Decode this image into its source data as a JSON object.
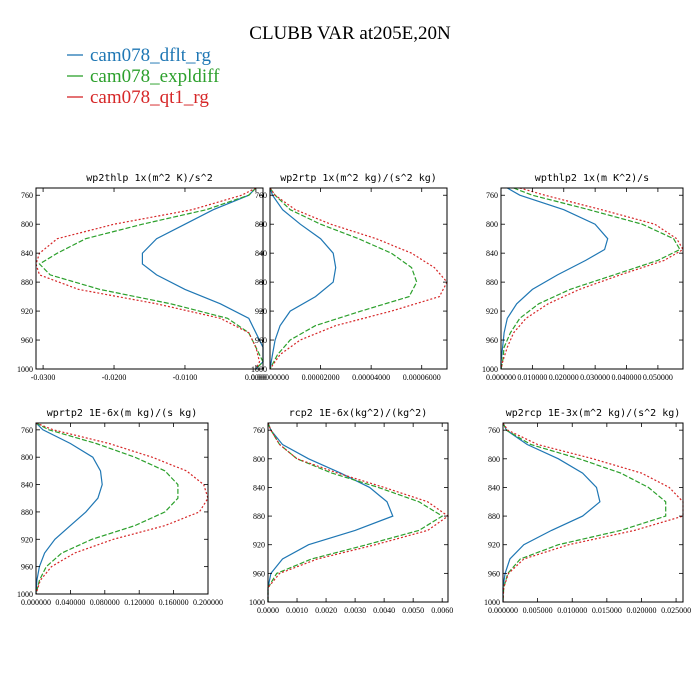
{
  "title": "CLUBB VAR at205E,20N",
  "legend": [
    {
      "name": "cam078_dflt_rg",
      "color": "#1f77b4"
    },
    {
      "name": "cam078_expldiff",
      "color": "#2ca02c"
    },
    {
      "name": "cam078_qt1_rg",
      "color": "#d62728"
    }
  ],
  "chart_data": [
    {
      "type": "line",
      "title": "wp2thlp  1x(m^2 K)/s^2",
      "ylim": [
        1000,
        750
      ],
      "xlim": [
        -0.031,
        0.001
      ],
      "yticks": [
        760,
        800,
        840,
        880,
        920,
        960,
        1000
      ],
      "xticks": [
        -0.03,
        -0.02,
        -0.01,
        0.0
      ],
      "xticklabels": [
        "-0.0300",
        "-0.0200",
        "-0.0100",
        "0.0000"
      ],
      "y": [
        750,
        760,
        780,
        800,
        820,
        840,
        855,
        870,
        890,
        910,
        930,
        950,
        970,
        990,
        1000
      ],
      "series": [
        {
          "name": "cam078_dflt_rg",
          "values": [
            0.0,
            -0.001,
            -0.006,
            -0.01,
            -0.014,
            -0.016,
            -0.016,
            -0.014,
            -0.01,
            -0.005,
            -0.001,
            0.0,
            0.001,
            0.001,
            0.0
          ]
        },
        {
          "name": "cam078_expldiff",
          "values": [
            0.0,
            -0.001,
            -0.007,
            -0.016,
            -0.024,
            -0.028,
            -0.0305,
            -0.029,
            -0.022,
            -0.012,
            -0.004,
            -0.001,
            0.0,
            0.001,
            0.0
          ]
        },
        {
          "name": "cam078_qt1_rg",
          "values": [
            0.0,
            -0.002,
            -0.009,
            -0.02,
            -0.028,
            -0.0305,
            -0.031,
            -0.0305,
            -0.025,
            -0.014,
            -0.005,
            -0.001,
            0.0,
            0.0005,
            0.0
          ]
        }
      ]
    },
    {
      "type": "line",
      "title": "wp2rtp  1x(m^2 kg)/(s^2 kg)",
      "ylim": [
        1000,
        750
      ],
      "xlim": [
        0,
        7e-05
      ],
      "yticks": [
        760,
        800,
        840,
        880,
        920,
        960,
        1000
      ],
      "xticks": [
        0,
        2e-05,
        4e-05,
        6e-05
      ],
      "xticklabels": [
        "0.00000000",
        "0.00002000",
        "0.00004000",
        "0.00006000"
      ],
      "y": [
        750,
        760,
        780,
        800,
        820,
        840,
        860,
        880,
        900,
        920,
        940,
        960,
        980,
        1000
      ],
      "series": [
        {
          "name": "cam078_dflt_rg",
          "values": [
            0.0,
            1e-06,
            5e-06,
            1.2e-05,
            2e-05,
            2.5e-05,
            2.6e-05,
            2.5e-05,
            1.8e-05,
            8e-06,
            4e-06,
            2e-06,
            1e-06,
            0.0
          ]
        },
        {
          "name": "cam078_expldiff",
          "values": [
            0.0,
            2e-06,
            8e-06,
            2e-05,
            3.5e-05,
            4.8e-05,
            5.6e-05,
            5.8e-05,
            5.5e-05,
            3.6e-05,
            1.8e-05,
            8e-06,
            3e-06,
            0.0
          ]
        },
        {
          "name": "cam078_qt1_rg",
          "values": [
            0.0,
            2e-06,
            1e-05,
            2.4e-05,
            4.2e-05,
            5.6e-05,
            6.5e-05,
            7e-05,
            6.7e-05,
            4.8e-05,
            2.6e-05,
            1.2e-05,
            4e-06,
            0.0
          ]
        }
      ]
    },
    {
      "type": "line",
      "title": "wpthlp2  1x(m K^2)/s",
      "ylim": [
        1000,
        750
      ],
      "xlim": [
        0,
        0.058
      ],
      "yticks": [
        760,
        800,
        840,
        880,
        920,
        960,
        1000
      ],
      "xticks": [
        0,
        0.01,
        0.02,
        0.03,
        0.04,
        0.05
      ],
      "xticklabels": [
        "0.000000",
        "0.010000",
        "0.020000",
        "0.030000",
        "0.040000",
        "0.050000"
      ],
      "y": [
        750,
        760,
        780,
        800,
        820,
        835,
        850,
        870,
        890,
        910,
        930,
        950,
        970,
        990,
        1000
      ],
      "series": [
        {
          "name": "cam078_dflt_rg",
          "values": [
            0.002,
            0.006,
            0.02,
            0.03,
            0.034,
            0.033,
            0.027,
            0.018,
            0.01,
            0.005,
            0.002,
            0.001,
            0.0005,
            0.0,
            0.0
          ]
        },
        {
          "name": "cam078_expldiff",
          "values": [
            0.004,
            0.01,
            0.028,
            0.045,
            0.055,
            0.057,
            0.05,
            0.036,
            0.022,
            0.012,
            0.006,
            0.003,
            0.001,
            0.0005,
            0.0
          ]
        },
        {
          "name": "cam078_qt1_rg",
          "values": [
            0.006,
            0.014,
            0.032,
            0.049,
            0.056,
            0.058,
            0.052,
            0.038,
            0.025,
            0.015,
            0.008,
            0.004,
            0.002,
            0.0005,
            0.0
          ]
        }
      ]
    },
    {
      "type": "line",
      "title": "wprtp2  1E-6x(m kg)/(s kg)",
      "ylim": [
        1000,
        750
      ],
      "xlim": [
        0,
        0.2
      ],
      "yticks": [
        760,
        800,
        840,
        880,
        920,
        960,
        1000
      ],
      "xticks": [
        0,
        0.04,
        0.08,
        0.12,
        0.16,
        0.2
      ],
      "xticklabels": [
        "0.000000",
        "0.040000",
        "0.080000",
        "0.120000",
        "0.160000",
        "0.200000"
      ],
      "y": [
        750,
        760,
        780,
        800,
        820,
        840,
        860,
        880,
        900,
        920,
        940,
        960,
        980,
        1000
      ],
      "series": [
        {
          "name": "cam078_dflt_rg",
          "values": [
            0.0,
            0.008,
            0.04,
            0.066,
            0.075,
            0.077,
            0.072,
            0.058,
            0.04,
            0.022,
            0.01,
            0.004,
            0.001,
            0.0
          ]
        },
        {
          "name": "cam078_expldiff",
          "values": [
            0.0,
            0.015,
            0.07,
            0.115,
            0.15,
            0.165,
            0.165,
            0.15,
            0.115,
            0.065,
            0.03,
            0.012,
            0.004,
            0.0
          ]
        },
        {
          "name": "cam078_qt1_rg",
          "values": [
            0.0,
            0.02,
            0.085,
            0.135,
            0.175,
            0.195,
            0.2,
            0.19,
            0.15,
            0.09,
            0.045,
            0.018,
            0.005,
            0.0
          ]
        }
      ]
    },
    {
      "type": "line",
      "title": "rcp2  1E-6x(kg^2)/(kg^2)",
      "ylim": [
        1000,
        750
      ],
      "xlim": [
        0,
        0.0062
      ],
      "yticks": [
        760,
        800,
        840,
        880,
        920,
        960,
        1000
      ],
      "xticks": [
        0,
        0.001,
        0.002,
        0.003,
        0.004,
        0.005,
        0.006
      ],
      "xticklabels": [
        "0.0000",
        "0.0010",
        "0.0020",
        "0.0030",
        "0.0040",
        "0.0050",
        "0.0060"
      ],
      "y": [
        750,
        760,
        780,
        800,
        820,
        840,
        860,
        880,
        900,
        920,
        940,
        960,
        980,
        1000
      ],
      "series": [
        {
          "name": "cam078_dflt_rg",
          "values": [
            0.0,
            0.0001,
            0.0005,
            0.0014,
            0.0025,
            0.0035,
            0.0041,
            0.0043,
            0.003,
            0.0014,
            0.0005,
            0.0001,
            0.0,
            0.0
          ]
        },
        {
          "name": "cam078_expldiff",
          "values": [
            0.0,
            0.0001,
            0.0004,
            0.001,
            0.0022,
            0.0038,
            0.0052,
            0.006,
            0.0052,
            0.0034,
            0.0015,
            0.0003,
            0.0,
            0.0
          ]
        },
        {
          "name": "cam078_qt1_rg",
          "values": [
            0.0,
            0.0001,
            0.0004,
            0.001,
            0.0024,
            0.004,
            0.0055,
            0.0062,
            0.0055,
            0.0037,
            0.0017,
            0.0004,
            0.0,
            0.0
          ]
        }
      ]
    },
    {
      "type": "line",
      "title": "wp2rcp  1E-3x(m^2 kg)/(s^2 kg)",
      "ylim": [
        1000,
        750
      ],
      "xlim": [
        0,
        0.026
      ],
      "yticks": [
        760,
        800,
        840,
        880,
        920,
        960,
        1000
      ],
      "xticks": [
        0,
        0.005,
        0.01,
        0.015,
        0.02,
        0.025
      ],
      "xticklabels": [
        "0.000000",
        "0.005000",
        "0.010000",
        "0.015000",
        "0.020000",
        "0.025000"
      ],
      "y": [
        750,
        760,
        780,
        800,
        820,
        840,
        860,
        880,
        900,
        920,
        940,
        960,
        980,
        1000
      ],
      "series": [
        {
          "name": "cam078_dflt_rg",
          "values": [
            0.0,
            0.0005,
            0.0035,
            0.008,
            0.0115,
            0.0135,
            0.014,
            0.0115,
            0.007,
            0.003,
            0.001,
            0.0003,
            0.0,
            0.0
          ]
        },
        {
          "name": "cam078_expldiff",
          "values": [
            0.0,
            0.0005,
            0.004,
            0.011,
            0.017,
            0.021,
            0.0235,
            0.0235,
            0.017,
            0.008,
            0.0025,
            0.0007,
            0.0001,
            0.0
          ]
        },
        {
          "name": "cam078_qt1_rg",
          "values": [
            0.0,
            0.0007,
            0.005,
            0.013,
            0.02,
            0.024,
            0.026,
            0.026,
            0.019,
            0.0095,
            0.003,
            0.0008,
            0.0001,
            0.0
          ]
        }
      ]
    }
  ]
}
